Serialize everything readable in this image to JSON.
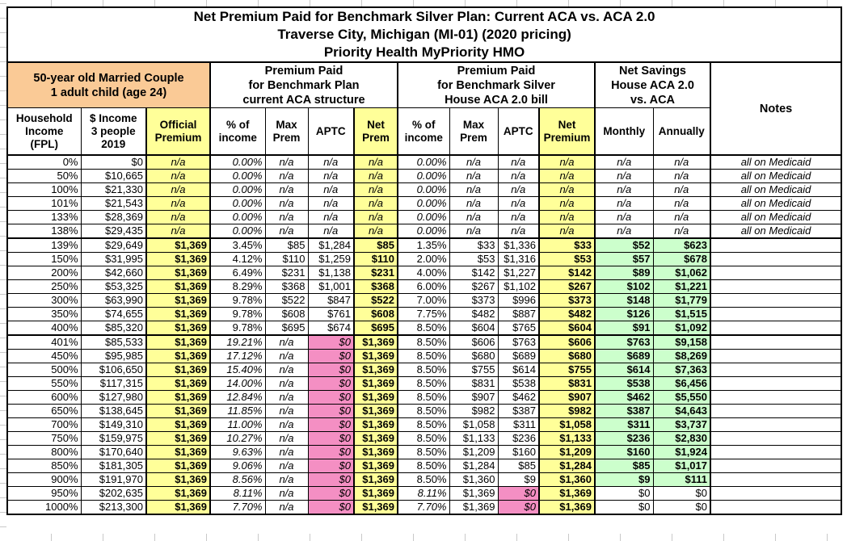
{
  "title": {
    "text": "Net Premium Paid for Benchmark Silver Plan: Current ACA vs. ACA 2.0\nTraverse City, Michigan (MI-01) (2020 pricing)\nPriority Health MyPriority HMO"
  },
  "groups": {
    "household": "50-year old Married Couple\n1 adult child (age 24)",
    "aca": "Premium Paid\nfor Benchmark Plan\ncurrent ACA structure",
    "aca2": "Premium Paid\nfor Benchmark Silver\nHouse ACA 2.0 bill",
    "savings": "Net Savings\nHouse ACA 2.0\nvs. ACA",
    "notes": "Notes"
  },
  "columns": [
    {
      "key": "fpl",
      "label": "Household\nIncome\n(FPL)"
    },
    {
      "key": "income",
      "label": "$ Income\n3 people\n2019"
    },
    {
      "key": "official",
      "label": "Official\nPremium"
    },
    {
      "key": "aca_pct",
      "label": "% of\nincome"
    },
    {
      "key": "aca_max",
      "label": "Max\nPrem"
    },
    {
      "key": "aca_aptc",
      "label": "APTC"
    },
    {
      "key": "aca_net",
      "label": "Net\nPrem"
    },
    {
      "key": "h_pct",
      "label": "% of\nincome"
    },
    {
      "key": "h_max",
      "label": "Max\nPrem"
    },
    {
      "key": "h_aptc",
      "label": "APTC"
    },
    {
      "key": "h_net",
      "label": "Net\nPremium"
    },
    {
      "key": "monthly",
      "label": "Monthly"
    },
    {
      "key": "annually",
      "label": "Annually"
    }
  ],
  "colors": {
    "yellow": "#FFFF99",
    "orange": "#FACA96",
    "green": "#CCFFCC",
    "pink": "#F48FC3"
  },
  "rows": [
    {
      "type": "medicaid",
      "fpl": "0%",
      "income": "$0",
      "official": "n/a",
      "aca_pct": "0.00%",
      "aca_max": "n/a",
      "aca_aptc": "n/a",
      "aca_net": "n/a",
      "h_pct": "0.00%",
      "h_max": "n/a",
      "h_aptc": "n/a",
      "h_net": "n/a",
      "monthly": "n/a",
      "annually": "n/a",
      "notes": "all on Medicaid"
    },
    {
      "type": "medicaid",
      "fpl": "50%",
      "income": "$10,665",
      "official": "n/a",
      "aca_pct": "0.00%",
      "aca_max": "n/a",
      "aca_aptc": "n/a",
      "aca_net": "n/a",
      "h_pct": "0.00%",
      "h_max": "n/a",
      "h_aptc": "n/a",
      "h_net": "n/a",
      "monthly": "n/a",
      "annually": "n/a",
      "notes": "all on Medicaid"
    },
    {
      "type": "medicaid",
      "fpl": "100%",
      "income": "$21,330",
      "official": "n/a",
      "aca_pct": "0.00%",
      "aca_max": "n/a",
      "aca_aptc": "n/a",
      "aca_net": "n/a",
      "h_pct": "0.00%",
      "h_max": "n/a",
      "h_aptc": "n/a",
      "h_net": "n/a",
      "monthly": "n/a",
      "annually": "n/a",
      "notes": "all on Medicaid"
    },
    {
      "type": "medicaid",
      "fpl": "101%",
      "income": "$21,543",
      "official": "n/a",
      "aca_pct": "0.00%",
      "aca_max": "n/a",
      "aca_aptc": "n/a",
      "aca_net": "n/a",
      "h_pct": "0.00%",
      "h_max": "n/a",
      "h_aptc": "n/a",
      "h_net": "n/a",
      "monthly": "n/a",
      "annually": "n/a",
      "notes": "all on Medicaid"
    },
    {
      "type": "medicaid",
      "fpl": "133%",
      "income": "$28,369",
      "official": "n/a",
      "aca_pct": "0.00%",
      "aca_max": "n/a",
      "aca_aptc": "n/a",
      "aca_net": "n/a",
      "h_pct": "0.00%",
      "h_max": "n/a",
      "h_aptc": "n/a",
      "h_net": "n/a",
      "monthly": "n/a",
      "annually": "n/a",
      "notes": "all on Medicaid"
    },
    {
      "type": "medicaid",
      "fpl": "138%",
      "income": "$29,435",
      "official": "n/a",
      "aca_pct": "0.00%",
      "aca_max": "n/a",
      "aca_aptc": "n/a",
      "aca_net": "n/a",
      "h_pct": "0.00%",
      "h_max": "n/a",
      "h_aptc": "n/a",
      "h_net": "n/a",
      "monthly": "n/a",
      "annually": "n/a",
      "notes": "all on Medicaid"
    },
    {
      "type": "subsidized",
      "fpl": "139%",
      "income": "$29,649",
      "official": "$1,369",
      "aca_pct": "3.45%",
      "aca_max": "$85",
      "aca_aptc": "$1,284",
      "aca_net": "$85",
      "h_pct": "1.35%",
      "h_max": "$33",
      "h_aptc": "$1,336",
      "h_net": "$33",
      "monthly": "$52",
      "annually": "$623",
      "notes": ""
    },
    {
      "type": "subsidized",
      "fpl": "150%",
      "income": "$31,995",
      "official": "$1,369",
      "aca_pct": "4.12%",
      "aca_max": "$110",
      "aca_aptc": "$1,259",
      "aca_net": "$110",
      "h_pct": "2.00%",
      "h_max": "$53",
      "h_aptc": "$1,316",
      "h_net": "$53",
      "monthly": "$57",
      "annually": "$678",
      "notes": ""
    },
    {
      "type": "subsidized",
      "fpl": "200%",
      "income": "$42,660",
      "official": "$1,369",
      "aca_pct": "6.49%",
      "aca_max": "$231",
      "aca_aptc": "$1,138",
      "aca_net": "$231",
      "h_pct": "4.00%",
      "h_max": "$142",
      "h_aptc": "$1,227",
      "h_net": "$142",
      "monthly": "$89",
      "annually": "$1,062",
      "notes": ""
    },
    {
      "type": "subsidized",
      "fpl": "250%",
      "income": "$53,325",
      "official": "$1,369",
      "aca_pct": "8.29%",
      "aca_max": "$368",
      "aca_aptc": "$1,001",
      "aca_net": "$368",
      "h_pct": "6.00%",
      "h_max": "$267",
      "h_aptc": "$1,102",
      "h_net": "$267",
      "monthly": "$102",
      "annually": "$1,221",
      "notes": ""
    },
    {
      "type": "subsidized",
      "fpl": "300%",
      "income": "$63,990",
      "official": "$1,369",
      "aca_pct": "9.78%",
      "aca_max": "$522",
      "aca_aptc": "$847",
      "aca_net": "$522",
      "h_pct": "7.00%",
      "h_max": "$373",
      "h_aptc": "$996",
      "h_net": "$373",
      "monthly": "$148",
      "annually": "$1,779",
      "notes": ""
    },
    {
      "type": "subsidized",
      "fpl": "350%",
      "income": "$74,655",
      "official": "$1,369",
      "aca_pct": "9.78%",
      "aca_max": "$608",
      "aca_aptc": "$761",
      "aca_net": "$608",
      "h_pct": "7.75%",
      "h_max": "$482",
      "h_aptc": "$887",
      "h_net": "$482",
      "monthly": "$126",
      "annually": "$1,515",
      "notes": ""
    },
    {
      "type": "subsidized",
      "fpl": "400%",
      "income": "$85,320",
      "official": "$1,369",
      "aca_pct": "9.78%",
      "aca_max": "$695",
      "aca_aptc": "$674",
      "aca_net": "$695",
      "h_pct": "8.50%",
      "h_max": "$604",
      "h_aptc": "$765",
      "h_net": "$604",
      "monthly": "$91",
      "annually": "$1,092",
      "notes": ""
    },
    {
      "type": "cliff",
      "fpl": "401%",
      "income": "$85,533",
      "official": "$1,369",
      "aca_pct": "19.21%",
      "aca_max": "n/a",
      "aca_aptc": "$0",
      "aca_net": "$1,369",
      "h_pct": "8.50%",
      "h_max": "$606",
      "h_aptc": "$763",
      "h_net": "$606",
      "monthly": "$763",
      "annually": "$9,158",
      "notes": ""
    },
    {
      "type": "cliff",
      "fpl": "450%",
      "income": "$95,985",
      "official": "$1,369",
      "aca_pct": "17.12%",
      "aca_max": "n/a",
      "aca_aptc": "$0",
      "aca_net": "$1,369",
      "h_pct": "8.50%",
      "h_max": "$680",
      "h_aptc": "$689",
      "h_net": "$680",
      "monthly": "$689",
      "annually": "$8,269",
      "notes": ""
    },
    {
      "type": "cliff",
      "fpl": "500%",
      "income": "$106,650",
      "official": "$1,369",
      "aca_pct": "15.40%",
      "aca_max": "n/a",
      "aca_aptc": "$0",
      "aca_net": "$1,369",
      "h_pct": "8.50%",
      "h_max": "$755",
      "h_aptc": "$614",
      "h_net": "$755",
      "monthly": "$614",
      "annually": "$7,363",
      "notes": ""
    },
    {
      "type": "cliff",
      "fpl": "550%",
      "income": "$117,315",
      "official": "$1,369",
      "aca_pct": "14.00%",
      "aca_max": "n/a",
      "aca_aptc": "$0",
      "aca_net": "$1,369",
      "h_pct": "8.50%",
      "h_max": "$831",
      "h_aptc": "$538",
      "h_net": "$831",
      "monthly": "$538",
      "annually": "$6,456",
      "notes": ""
    },
    {
      "type": "cliff",
      "fpl": "600%",
      "income": "$127,980",
      "official": "$1,369",
      "aca_pct": "12.84%",
      "aca_max": "n/a",
      "aca_aptc": "$0",
      "aca_net": "$1,369",
      "h_pct": "8.50%",
      "h_max": "$907",
      "h_aptc": "$462",
      "h_net": "$907",
      "monthly": "$462",
      "annually": "$5,550",
      "notes": ""
    },
    {
      "type": "cliff",
      "fpl": "650%",
      "income": "$138,645",
      "official": "$1,369",
      "aca_pct": "11.85%",
      "aca_max": "n/a",
      "aca_aptc": "$0",
      "aca_net": "$1,369",
      "h_pct": "8.50%",
      "h_max": "$982",
      "h_aptc": "$387",
      "h_net": "$982",
      "monthly": "$387",
      "annually": "$4,643",
      "notes": ""
    },
    {
      "type": "cliff",
      "fpl": "700%",
      "income": "$149,310",
      "official": "$1,369",
      "aca_pct": "11.00%",
      "aca_max": "n/a",
      "aca_aptc": "$0",
      "aca_net": "$1,369",
      "h_pct": "8.50%",
      "h_max": "$1,058",
      "h_aptc": "$311",
      "h_net": "$1,058",
      "monthly": "$311",
      "annually": "$3,737",
      "notes": ""
    },
    {
      "type": "cliff",
      "fpl": "750%",
      "income": "$159,975",
      "official": "$1,369",
      "aca_pct": "10.27%",
      "aca_max": "n/a",
      "aca_aptc": "$0",
      "aca_net": "$1,369",
      "h_pct": "8.50%",
      "h_max": "$1,133",
      "h_aptc": "$236",
      "h_net": "$1,133",
      "monthly": "$236",
      "annually": "$2,830",
      "notes": ""
    },
    {
      "type": "cliff",
      "fpl": "800%",
      "income": "$170,640",
      "official": "$1,369",
      "aca_pct": "9.63%",
      "aca_max": "n/a",
      "aca_aptc": "$0",
      "aca_net": "$1,369",
      "h_pct": "8.50%",
      "h_max": "$1,209",
      "h_aptc": "$160",
      "h_net": "$1,209",
      "monthly": "$160",
      "annually": "$1,924",
      "notes": ""
    },
    {
      "type": "cliff",
      "fpl": "850%",
      "income": "$181,305",
      "official": "$1,369",
      "aca_pct": "9.06%",
      "aca_max": "n/a",
      "aca_aptc": "$0",
      "aca_net": "$1,369",
      "h_pct": "8.50%",
      "h_max": "$1,284",
      "h_aptc": "$85",
      "h_net": "$1,284",
      "monthly": "$85",
      "annually": "$1,017",
      "notes": ""
    },
    {
      "type": "cliff",
      "fpl": "900%",
      "income": "$191,970",
      "official": "$1,369",
      "aca_pct": "8.56%",
      "aca_max": "n/a",
      "aca_aptc": "$0",
      "aca_net": "$1,369",
      "h_pct": "8.50%",
      "h_max": "$1,360",
      "h_aptc": "$9",
      "h_net": "$1,360",
      "monthly": "$9",
      "annually": "$111",
      "notes": ""
    },
    {
      "type": "over_cap",
      "fpl": "950%",
      "income": "$202,635",
      "official": "$1,369",
      "aca_pct": "8.11%",
      "aca_max": "n/a",
      "aca_aptc": "$0",
      "aca_net": "$1,369",
      "h_pct": "8.11%",
      "h_max": "$1,369",
      "h_aptc": "$0",
      "h_net": "$1,369",
      "monthly": "$0",
      "annually": "$0",
      "notes": ""
    },
    {
      "type": "over_cap",
      "fpl": "1000%",
      "income": "$213,300",
      "official": "$1,369",
      "aca_pct": "7.70%",
      "aca_max": "n/a",
      "aca_aptc": "$0",
      "aca_net": "$1,369",
      "h_pct": "7.70%",
      "h_max": "$1,369",
      "h_aptc": "$0",
      "h_net": "$1,369",
      "monthly": "$0",
      "annually": "$0",
      "notes": ""
    }
  ]
}
